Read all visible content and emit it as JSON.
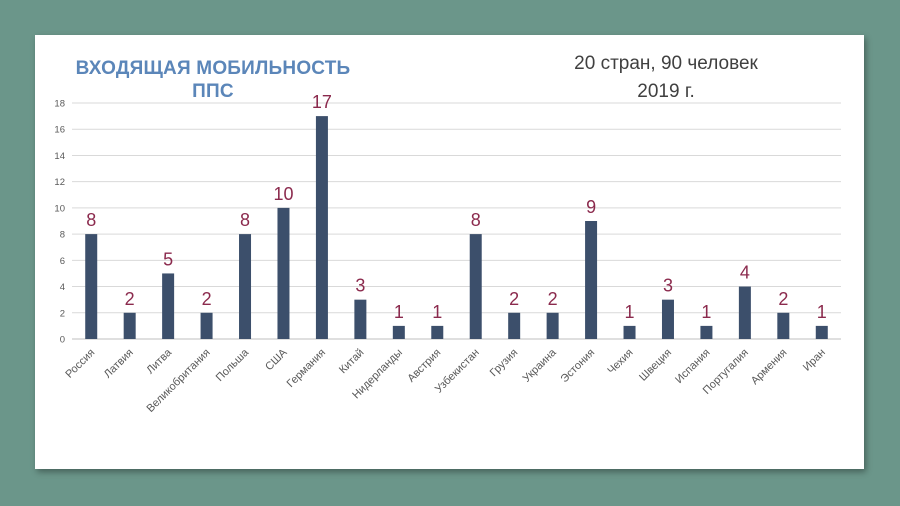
{
  "slide": {
    "title_line1": "ВХОДЯЩАЯ МОБИЛЬНОСТЬ",
    "title_line2": "ППС",
    "subtitle_line1": "20 стран, 90 человек",
    "subtitle_line2": "2019 г."
  },
  "colors": {
    "background": "#6b968a",
    "bar": "#3c4f6b",
    "data_label": "#8b2a4d",
    "title": "#5b86b9"
  },
  "chart_data": {
    "type": "bar",
    "title": "ВХОДЯЩАЯ МОБИЛЬНОСТЬ ППС",
    "categories": [
      "Россия",
      "Латвия",
      "Литва",
      "Великобритания",
      "Польша",
      "США",
      "Германия",
      "Китай",
      "Нидерланды",
      "Австрия",
      "Узбекистан",
      "Грузия",
      "Украина",
      "Эстония",
      "Чехия",
      "Швеция",
      "Испания",
      "Португалия",
      "Армения",
      "Иран"
    ],
    "values": [
      8,
      2,
      5,
      2,
      8,
      10,
      17,
      3,
      1,
      1,
      8,
      2,
      2,
      9,
      1,
      3,
      1,
      4,
      2,
      1
    ],
    "ylim": [
      0,
      18
    ],
    "yticks": [
      0,
      2,
      4,
      6,
      8,
      10,
      12,
      14,
      16,
      18
    ],
    "grid": true,
    "legend": "none"
  }
}
